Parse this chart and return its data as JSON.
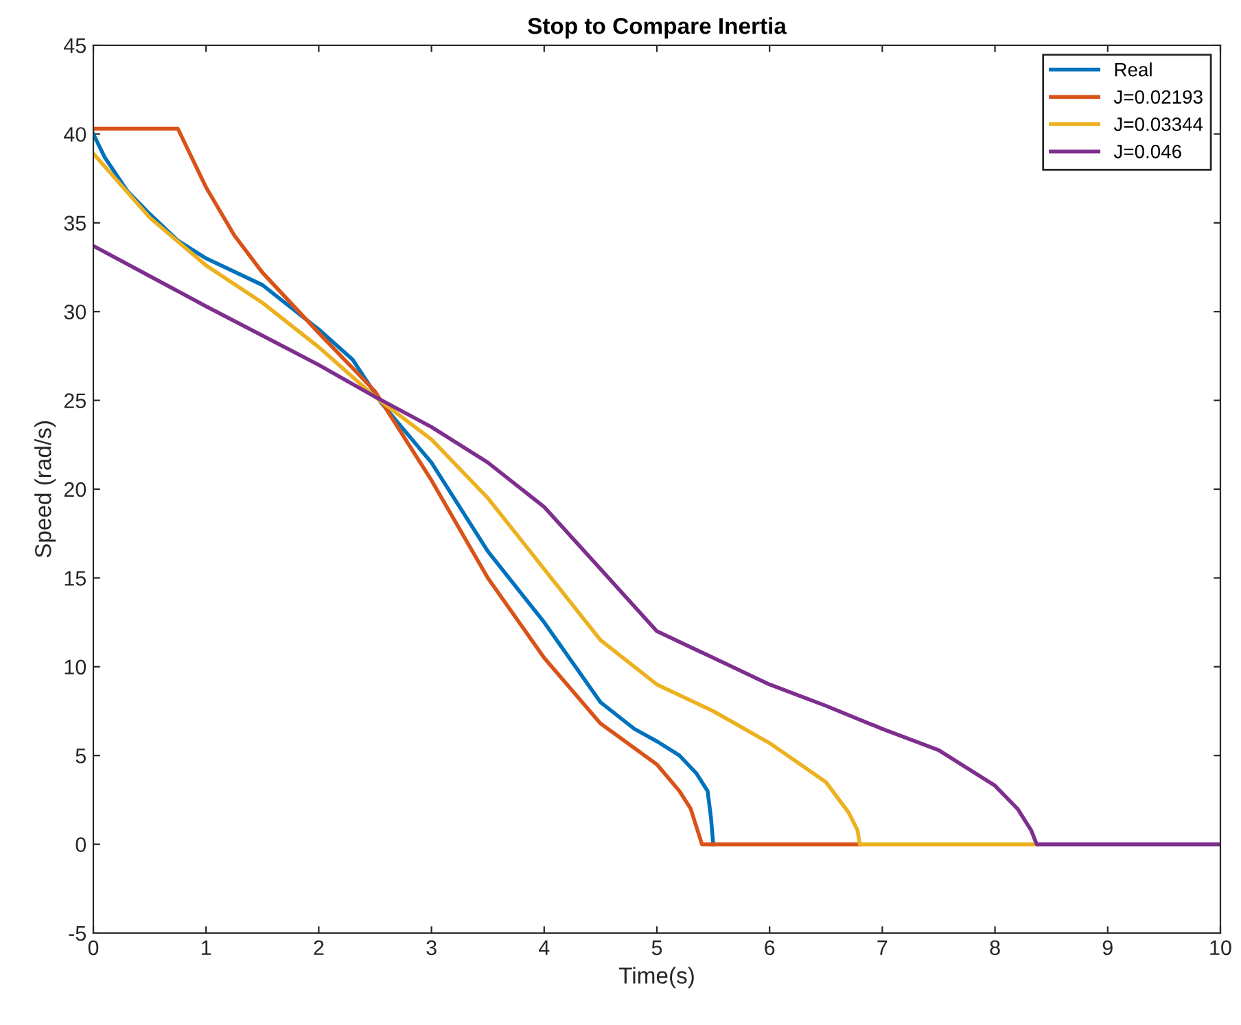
{
  "chart_data": {
    "type": "line",
    "title": "Stop to Compare Inertia",
    "xlabel": "Time(s)",
    "ylabel": "Speed (rad/s)",
    "xlim": [
      0,
      10
    ],
    "ylim": [
      -5,
      45
    ],
    "xticks": [
      0,
      1,
      2,
      3,
      4,
      5,
      6,
      7,
      8,
      9,
      10
    ],
    "yticks": [
      -5,
      0,
      5,
      10,
      15,
      20,
      25,
      30,
      35,
      40,
      45
    ],
    "grid": false,
    "legend": "top right",
    "marker": "none",
    "line_style": "solid",
    "series": [
      {
        "name": "Real",
        "color": "#0072bd",
        "x": [
          0,
          0.1,
          0.3,
          0.5,
          0.75,
          1,
          1.5,
          2,
          2.3,
          2.55,
          3,
          3.5,
          4,
          4.5,
          4.8,
          5,
          5.2,
          5.35,
          5.45,
          5.48,
          5.5
        ],
        "values": [
          40,
          38.7,
          36.8,
          35.5,
          34,
          33,
          31.5,
          29,
          27.3,
          24.9,
          21.5,
          16.5,
          12.5,
          8,
          6.5,
          5.8,
          5,
          4,
          3,
          1.5,
          0
        ]
      },
      {
        "name": "J=0.02193",
        "color": "#d95319",
        "x": [
          0,
          0.75,
          1,
          1.25,
          1.5,
          2,
          2.5,
          3,
          3.5,
          4,
          4.5,
          5,
          5.2,
          5.3,
          5.35,
          5.4,
          6.8
        ],
        "values": [
          40.3,
          40.3,
          37,
          34.3,
          32.2,
          28.8,
          25.5,
          20.5,
          15,
          10.5,
          6.8,
          4.5,
          3,
          2,
          1,
          0,
          0
        ]
      },
      {
        "name": "J=0.03344",
        "color": "#edb120",
        "x": [
          0,
          0.5,
          1,
          1.5,
          2,
          2.5,
          3,
          3.5,
          4,
          4.5,
          5,
          5.5,
          6,
          6.5,
          6.7,
          6.78,
          6.8,
          8.37
        ],
        "values": [
          38.9,
          35.3,
          32.6,
          30.5,
          28,
          25.2,
          22.8,
          19.5,
          15.5,
          11.5,
          9,
          7.5,
          5.7,
          3.5,
          1.8,
          0.8,
          0,
          0
        ]
      },
      {
        "name": "J=0.046",
        "color": "#7e2f8e",
        "x": [
          0,
          1,
          2,
          2.5,
          3,
          3.5,
          4,
          4.5,
          5,
          5.5,
          6,
          6.5,
          7,
          7.5,
          8,
          8.2,
          8.32,
          8.37,
          10
        ],
        "values": [
          33.7,
          30.3,
          27,
          25.2,
          23.5,
          21.5,
          19,
          15.5,
          12,
          10.5,
          9,
          7.8,
          6.5,
          5.3,
          3.3,
          2,
          0.8,
          0,
          0
        ]
      }
    ]
  }
}
